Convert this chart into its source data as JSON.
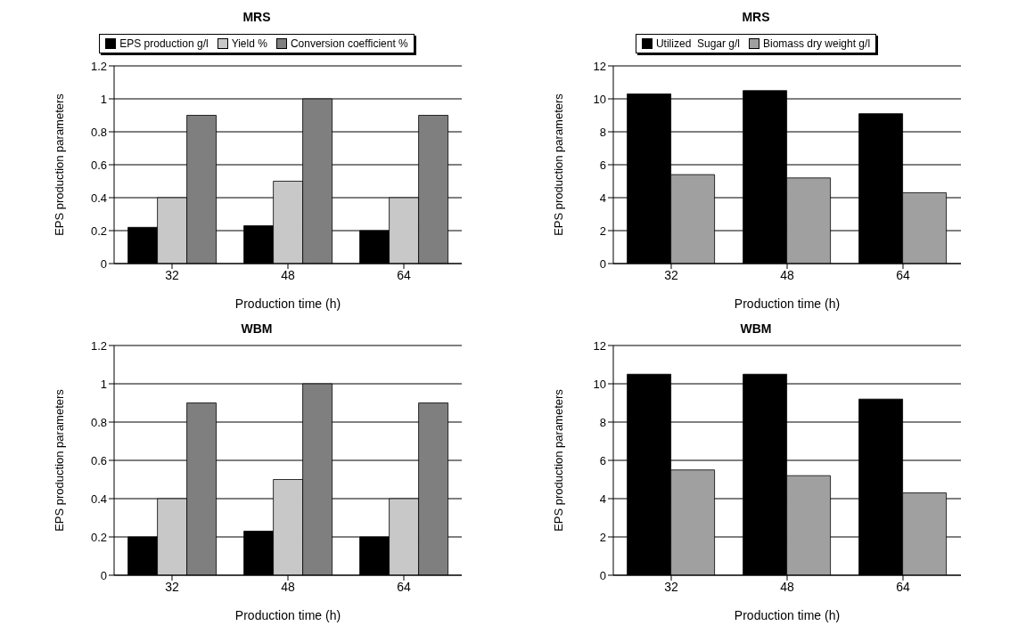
{
  "chart_data": [
    {
      "type": "bar",
      "title": "MRS",
      "xlabel": "Production time (h)",
      "ylabel": "EPS production parameters",
      "categories": [
        "32",
        "48",
        "64"
      ],
      "series": [
        {
          "name": "EPS production g/l",
          "color": "#000000",
          "values": [
            0.22,
            0.23,
            0.2
          ]
        },
        {
          "name": "Yield %",
          "color": "#c8c8c8",
          "values": [
            0.4,
            0.5,
            0.4
          ]
        },
        {
          "name": "Conversion coefficient %",
          "color": "#7f7f7f",
          "values": [
            0.9,
            1.0,
            0.9
          ]
        }
      ],
      "ylim": [
        0,
        1.2
      ],
      "yticks": [
        0,
        0.2,
        0.4,
        0.6,
        0.8,
        1,
        1.2
      ],
      "grid": "y",
      "legend": "top"
    },
    {
      "type": "bar",
      "title": "MRS",
      "xlabel": "Production time (h)",
      "ylabel": "EPS production parameters",
      "categories": [
        "32",
        "48",
        "64"
      ],
      "series": [
        {
          "name": "Utilized  Sugar g/l",
          "color": "#000000",
          "values": [
            10.3,
            10.5,
            9.1
          ]
        },
        {
          "name": "Biomass dry weight g/l",
          "color": "#a0a0a0",
          "values": [
            5.4,
            5.2,
            4.3
          ]
        }
      ],
      "ylim": [
        0,
        12
      ],
      "yticks": [
        0,
        2,
        4,
        6,
        8,
        10,
        12
      ],
      "grid": "y",
      "legend": "top"
    },
    {
      "type": "bar",
      "title": "WBM",
      "xlabel": "Production time (h)",
      "ylabel": "EPS production parameters",
      "categories": [
        "32",
        "48",
        "64"
      ],
      "series": [
        {
          "color": "#000000",
          "values": [
            0.2,
            0.23,
            0.2
          ]
        },
        {
          "color": "#c8c8c8",
          "values": [
            0.4,
            0.5,
            0.4
          ]
        },
        {
          "color": "#7f7f7f",
          "values": [
            0.9,
            1.0,
            0.9
          ]
        }
      ],
      "ylim": [
        0,
        1.2
      ],
      "yticks": [
        0,
        0.2,
        0.4,
        0.6,
        0.8,
        1,
        1.2
      ],
      "grid": "y"
    },
    {
      "type": "bar",
      "title": "WBM",
      "xlabel": "Production time (h)",
      "ylabel": "EPS production parameters",
      "categories": [
        "32",
        "48",
        "64"
      ],
      "series": [
        {
          "color": "#000000",
          "values": [
            10.5,
            10.5,
            9.2
          ]
        },
        {
          "color": "#a0a0a0",
          "values": [
            5.5,
            5.2,
            4.3
          ]
        }
      ],
      "ylim": [
        0,
        12
      ],
      "yticks": [
        0,
        2,
        4,
        6,
        8,
        10,
        12
      ],
      "grid": "y"
    }
  ]
}
